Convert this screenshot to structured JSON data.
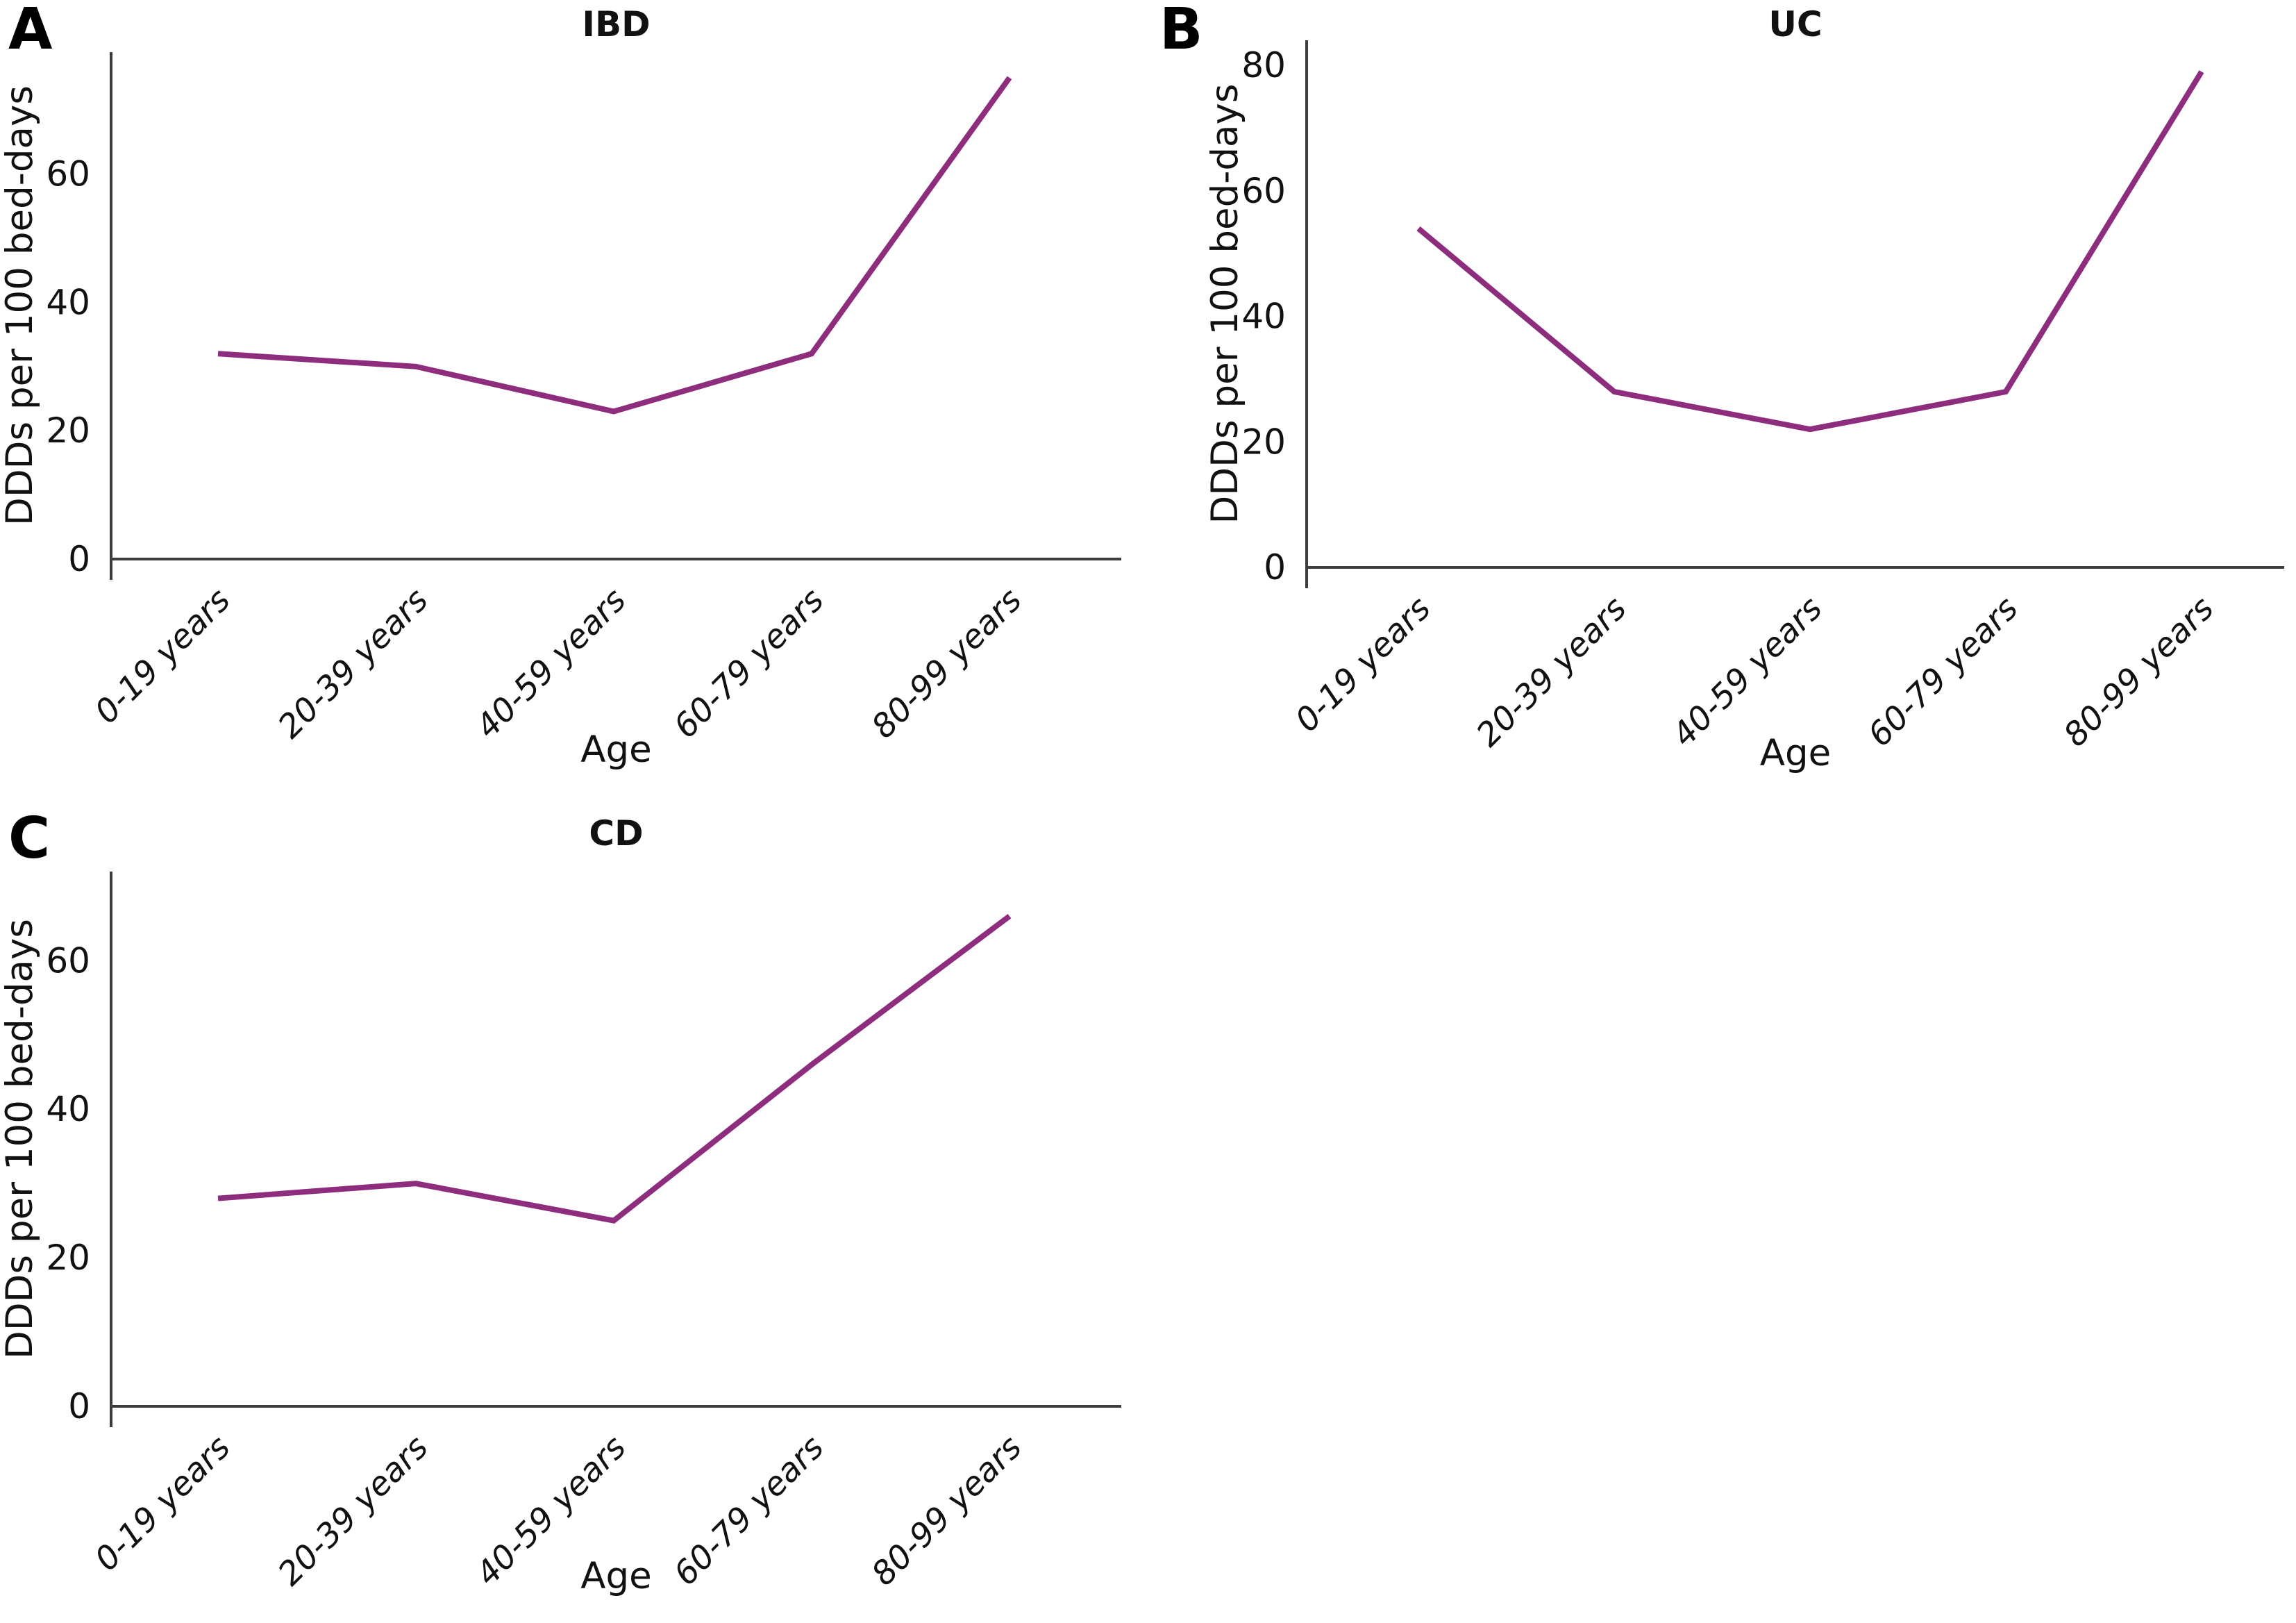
{
  "figure": {
    "line_color": "#8e2d7e",
    "axis_color": "#3d3d3d",
    "text_color": "#111111",
    "background": "#ffffff"
  },
  "chart_data": [
    {
      "panel": "A",
      "type": "line",
      "title": "IBD",
      "xlabel": "Age",
      "ylabel": "DDDs per 100 bed-days",
      "categories": [
        "0-19 years",
        "20-39 years",
        "40-59 years",
        "60-79 years",
        "80-99 years"
      ],
      "values": [
        32,
        30,
        23,
        32,
        75
      ],
      "yticks": [
        0,
        20,
        40,
        60
      ],
      "ylim": [
        0,
        79
      ],
      "grid": false,
      "legend": "none"
    },
    {
      "panel": "B",
      "type": "line",
      "title": "UC",
      "xlabel": "Age",
      "ylabel": "DDDs per 100 bed-days",
      "categories": [
        "0-19 years",
        "20-39 years",
        "40-59 years",
        "60-79 years",
        "80-99 years"
      ],
      "values": [
        54,
        28,
        22,
        28,
        79
      ],
      "yticks": [
        0,
        20,
        40,
        60,
        80
      ],
      "ylim": [
        0,
        84
      ],
      "grid": false,
      "legend": "none"
    },
    {
      "panel": "C",
      "type": "line",
      "title": "CD",
      "xlabel": "Age",
      "ylabel": "DDDs per 100 bed-days",
      "categories": [
        "0-19 years",
        "20-39 years",
        "40-59 years",
        "60-79 years",
        "80-99 years"
      ],
      "values": [
        28,
        30,
        25,
        46,
        66
      ],
      "yticks": [
        0,
        20,
        40,
        60
      ],
      "ylim": [
        0,
        72
      ],
      "grid": false,
      "legend": "none"
    }
  ]
}
